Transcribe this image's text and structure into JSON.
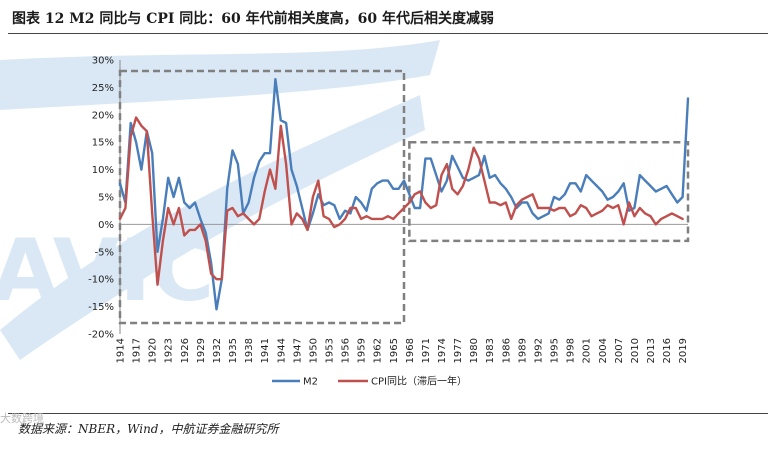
{
  "header": {
    "title": "图表 12 M2 同比与 CPI 同比：60 年代前相关度高，60 年代后相关度减弱"
  },
  "footer": {
    "source": "数据来源：NBER，Wind，中航证券金融研究所",
    "watermark": "大数跨境"
  },
  "colors": {
    "m2": "#4A7EBB",
    "cpi": "#C0504D",
    "watermark": "#BDD7EE",
    "box": "#808080"
  },
  "chart_data": {
    "type": "line",
    "title": "",
    "xlabel": "",
    "ylabel": "",
    "ylim": [
      -20,
      30
    ],
    "yticks": [
      "-20%",
      "-15%",
      "-10%",
      "-5%",
      "0%",
      "5%",
      "10%",
      "15%",
      "20%",
      "25%",
      "30%"
    ],
    "ytick_values": [
      -20,
      -15,
      -10,
      -5,
      0,
      5,
      10,
      15,
      20,
      25,
      30
    ],
    "xlim": [
      1914,
      2020
    ],
    "xticks": [
      "1914",
      "1917",
      "1920",
      "1923",
      "1926",
      "1929",
      "1932",
      "1935",
      "1938",
      "1941",
      "1944",
      "1947",
      "1950",
      "1953",
      "1956",
      "1959",
      "1962",
      "1965",
      "1968",
      "1971",
      "1974",
      "1977",
      "1980",
      "1983",
      "1986",
      "1989",
      "1992",
      "1995",
      "1998",
      "2001",
      "2004",
      "2007",
      "2010",
      "2013",
      "2016",
      "2019"
    ],
    "legend": [
      "M2",
      "CPI同比（滞后一年）"
    ],
    "legend_position": "bottom",
    "annotations": [
      {
        "type": "dashed-box",
        "x_range": [
          1914,
          1967
        ],
        "y_range": [
          -18,
          28
        ]
      },
      {
        "type": "dashed-box",
        "x_range": [
          1968,
          2020
        ],
        "y_range": [
          -3,
          15
        ]
      }
    ],
    "series": [
      {
        "name": "M2",
        "x": [
          1914,
          1915,
          1916,
          1917,
          1918,
          1919,
          1920,
          1921,
          1922,
          1923,
          1924,
          1925,
          1926,
          1927,
          1928,
          1929,
          1930,
          1931,
          1932,
          1933,
          1934,
          1935,
          1936,
          1937,
          1938,
          1939,
          1940,
          1941,
          1942,
          1943,
          1944,
          1945,
          1946,
          1947,
          1948,
          1949,
          1950,
          1951,
          1952,
          1953,
          1954,
          1955,
          1956,
          1957,
          1958,
          1959,
          1960,
          1961,
          1962,
          1963,
          1964,
          1965,
          1966,
          1967,
          1968,
          1969,
          1970,
          1971,
          1972,
          1973,
          1974,
          1975,
          1976,
          1977,
          1978,
          1979,
          1980,
          1981,
          1982,
          1983,
          1984,
          1985,
          1986,
          1987,
          1988,
          1989,
          1990,
          1991,
          1992,
          1993,
          1994,
          1995,
          1996,
          1997,
          1998,
          1999,
          2000,
          2001,
          2002,
          2003,
          2004,
          2005,
          2006,
          2007,
          2008,
          2009,
          2010,
          2011,
          2012,
          2013,
          2014,
          2015,
          2016,
          2017,
          2018,
          2019,
          2020
        ],
        "values": [
          7.5,
          4,
          18.5,
          15,
          10,
          17,
          13,
          -5,
          1,
          8.5,
          5,
          8.5,
          4,
          3,
          4,
          1,
          -1.5,
          -7,
          -15.5,
          -10,
          6.5,
          13.5,
          11,
          2,
          4,
          8.5,
          11.5,
          13,
          13,
          26.5,
          19,
          18.5,
          10,
          7,
          3,
          -1,
          2,
          5.5,
          3.5,
          4,
          3.5,
          1,
          2.5,
          2,
          5,
          4,
          2.5,
          6.5,
          7.5,
          8,
          8,
          6.5,
          6.5,
          8,
          5.5,
          3,
          3,
          12,
          12,
          9,
          6,
          8,
          12.5,
          10.5,
          8.5,
          8,
          8.5,
          9,
          12.5,
          8.5,
          9,
          7.5,
          6.5,
          5,
          3,
          4,
          4,
          2,
          1,
          1.5,
          2,
          5,
          4.5,
          5.5,
          7.5,
          7.5,
          6,
          9,
          8,
          7,
          6,
          4.5,
          5,
          6,
          7.5,
          2.5,
          3,
          9,
          8,
          7,
          6,
          6.5,
          7,
          5.5,
          4,
          5,
          23
        ]
      },
      {
        "name": "CPI同比（滞后一年）",
        "x": [
          1914,
          1915,
          1916,
          1917,
          1918,
          1919,
          1920,
          1921,
          1922,
          1923,
          1924,
          1925,
          1926,
          1927,
          1928,
          1929,
          1930,
          1931,
          1932,
          1933,
          1934,
          1935,
          1936,
          1937,
          1938,
          1939,
          1940,
          1941,
          1942,
          1943,
          1944,
          1945,
          1946,
          1947,
          1948,
          1949,
          1950,
          1951,
          1952,
          1953,
          1954,
          1955,
          1956,
          1957,
          1958,
          1959,
          1960,
          1961,
          1962,
          1963,
          1964,
          1965,
          1966,
          1967,
          1968,
          1969,
          1970,
          1971,
          1972,
          1973,
          1974,
          1975,
          1976,
          1977,
          1978,
          1979,
          1980,
          1981,
          1982,
          1983,
          1984,
          1985,
          1986,
          1987,
          1988,
          1989,
          1990,
          1991,
          1992,
          1993,
          1994,
          1995,
          1996,
          1997,
          1998,
          1999,
          2000,
          2001,
          2002,
          2003,
          2004,
          2005,
          2006,
          2007,
          2008,
          2009,
          2010,
          2011,
          2012,
          2013,
          2014,
          2015,
          2016,
          2017,
          2018,
          2019
        ],
        "values": [
          1,
          3,
          16,
          19.5,
          18,
          17,
          2,
          -11,
          -3,
          3,
          0,
          3,
          -2,
          -1,
          -1,
          0,
          -3,
          -9,
          -10,
          -10,
          2.5,
          3,
          1.5,
          2,
          1,
          0,
          1,
          6,
          10,
          6.5,
          18,
          11,
          0,
          2,
          1,
          -1,
          5,
          8,
          1.5,
          1,
          -0.5,
          0,
          1,
          3,
          3,
          1,
          1.5,
          1,
          1,
          1,
          1.5,
          1,
          2,
          3,
          4,
          5.5,
          6,
          4,
          3,
          3.5,
          9,
          11,
          6.5,
          5.5,
          7,
          10,
          14,
          12,
          8,
          4,
          4,
          3.5,
          4,
          1,
          3.5,
          4.5,
          5,
          5.5,
          3,
          3,
          3,
          2.5,
          3,
          3,
          1.5,
          2,
          3.5,
          3,
          1.5,
          2,
          2.5,
          3.5,
          3,
          3.5,
          0,
          4,
          1.5,
          3,
          2,
          1.5,
          0,
          1,
          1.5,
          2,
          1.5,
          1
        ]
      }
    ]
  }
}
